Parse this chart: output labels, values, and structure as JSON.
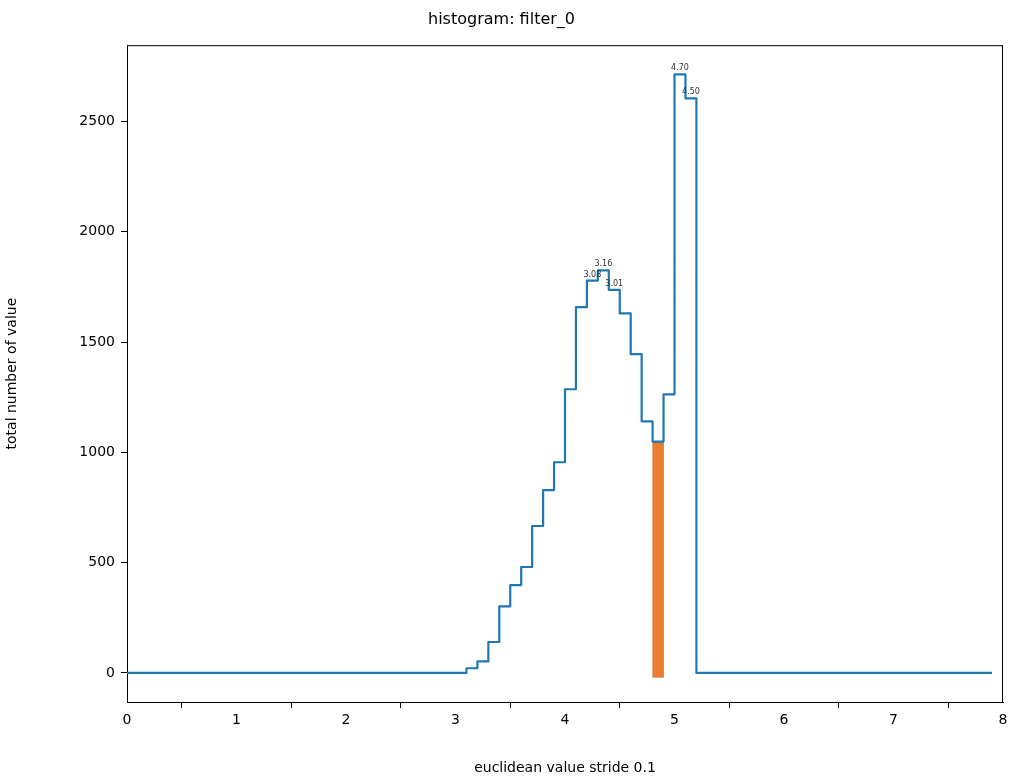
{
  "chart_data": {
    "type": "histogram",
    "title": "histogram: filter_0",
    "xlabel": "euclidean value stride 0.1",
    "ylabel": "total number of value",
    "bins": [
      0,
      0.1,
      0.2,
      0.3,
      0.4,
      0.5,
      0.6,
      0.7,
      0.8,
      0.9,
      1,
      1.1,
      1.2,
      1.3,
      1.4,
      1.5,
      1.6,
      1.7,
      1.8,
      1.9,
      2,
      2.1,
      2.2,
      2.3,
      2.4,
      2.5,
      2.6,
      2.7,
      2.8,
      2.9,
      3,
      3.1,
      3.2,
      3.3,
      3.4,
      3.5,
      3.6,
      3.7,
      3.8,
      3.9,
      4,
      4.1,
      4.2,
      4.3,
      4.4,
      4.5,
      4.6,
      4.7,
      4.8,
      4.9,
      5,
      5.1,
      5.2,
      5.3,
      5.4,
      5.5,
      5.6,
      5.7,
      5.8,
      5.9,
      6,
      6.1,
      6.2,
      6.3,
      6.4,
      6.5,
      6.6,
      6.7,
      6.8,
      6.9,
      7,
      7.1,
      7.2,
      7.3,
      7.4,
      7.5,
      7.6,
      7.7,
      7.8,
      7.9
    ],
    "series": [
      {
        "type": "histogram",
        "color": "#1f77b4",
        "values": [
          0,
          0,
          0,
          0,
          0,
          0,
          0,
          0,
          0,
          0,
          0,
          0,
          0,
          0,
          0,
          0,
          0,
          0,
          0,
          0,
          0,
          0,
          0,
          0,
          0,
          0,
          0,
          0,
          0,
          0,
          0,
          21,
          52,
          140,
          302,
          398,
          480,
          666,
          829,
          955,
          1286,
          1658,
          1779,
          1825,
          1737,
          1630,
          1445,
          1140,
          1049,
          1263,
          2714,
          2605,
          0,
          0,
          0,
          0,
          0,
          0,
          0,
          0,
          0,
          0,
          0,
          0,
          0,
          0,
          0,
          0,
          0,
          0,
          0,
          0,
          0,
          0,
          0,
          0,
          0,
          0,
          0
        ]
      },
      {
        "type": "bar",
        "color": "#ed7d31",
        "x": [
          4.85
        ],
        "base": [
          -20
        ],
        "values": [
          1067
        ]
      }
    ],
    "annotations": [
      {
        "text": "3.08",
        "x": 4.25,
        "y": 1779
      },
      {
        "text": "3.16",
        "x": 4.35,
        "y": 1825
      },
      {
        "text": "3.01",
        "x": 4.45,
        "y": 1737
      },
      {
        "text": "4.70",
        "x": 5.05,
        "y": 2714
      },
      {
        "text": "4.50",
        "x": 5.15,
        "y": 2605
      }
    ],
    "xlim": [
      0,
      8
    ],
    "xticks": [
      0,
      1,
      2,
      3,
      4,
      5,
      6,
      7,
      8
    ],
    "ylim": [
      -132,
      2846
    ],
    "yticks": [
      0,
      500,
      1000,
      1500,
      2000,
      2500
    ],
    "grid": false,
    "legend": false
  }
}
